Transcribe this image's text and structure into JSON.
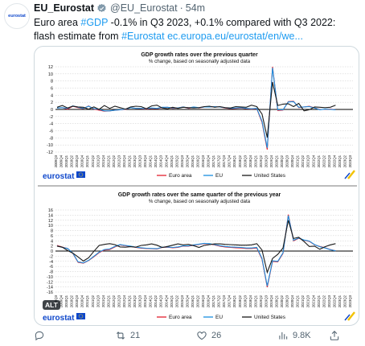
{
  "tweet": {
    "display_name": "EU_Eurostat",
    "handle": "@EU_Eurostat",
    "separator": "·",
    "time": "54m",
    "text_parts": {
      "p1": "Euro area ",
      "p2": "#GDP",
      "p3": " -0.1% in Q3 2023, +0.1% compared with Q3 2022: flash estimate from ",
      "p4": "#Eurostat",
      "p5": " ec.europa.eu/eurostat/en/we..."
    },
    "avatar_text": "eurostat"
  },
  "media": {
    "alt_badge": "ALT",
    "brand": "eurostat",
    "legend": {
      "euro": "Euro area",
      "eu": "EU",
      "us": "United States"
    },
    "colors": {
      "euro": "#e3202e",
      "eu": "#1a8fe0",
      "us": "#1a1a1a"
    }
  },
  "actions": {
    "replies": "",
    "reposts": "21",
    "likes": "26",
    "views": "9.8K"
  },
  "chart_data": [
    {
      "type": "line",
      "title": "GDP growth rates over the previous quarter",
      "subtitle": "% change, based on seasonally adjusted data",
      "ylim": [
        -12,
        12
      ],
      "yticks": [
        12,
        10,
        8,
        6,
        4,
        2,
        0,
        -2,
        -4,
        -6,
        -8,
        -10,
        -12
      ],
      "x_start": "2009Q3",
      "x_end": "2023Q3",
      "series": [
        {
          "name": "Euro area",
          "values": [
            0.4,
            0.5,
            0.1,
            0.9,
            0.5,
            0.2,
            1.0,
            0.1,
            -0.2,
            -0.5,
            -0.4,
            -0.2,
            -0.1,
            0.0,
            0.5,
            0.3,
            0.2,
            0.1,
            0.3,
            0.2,
            0.5,
            0.6,
            0.3,
            0.4,
            0.7,
            0.3,
            0.6,
            0.4,
            0.7,
            0.7,
            0.8,
            0.7,
            0.4,
            0.2,
            0.3,
            0.4,
            0.2,
            0.1,
            0.2,
            -3.6,
            -11.3,
            12.0,
            -0.3,
            -0.2,
            2.2,
            2.3,
            0.5,
            0.7,
            0.9,
            0.4,
            0.0,
            0.0,
            0.1,
            -0.1
          ]
        },
        {
          "name": "EU",
          "values": [
            0.4,
            0.5,
            0.3,
            1.0,
            0.6,
            0.3,
            0.9,
            0.2,
            0.0,
            -0.4,
            -0.4,
            -0.2,
            -0.1,
            0.1,
            0.5,
            0.3,
            0.3,
            0.2,
            0.4,
            0.3,
            0.6,
            0.6,
            0.4,
            0.4,
            0.7,
            0.4,
            0.7,
            0.5,
            0.7,
            0.7,
            0.8,
            0.7,
            0.5,
            0.3,
            0.4,
            0.5,
            0.3,
            0.2,
            0.3,
            -3.3,
            -10.8,
            11.7,
            -0.1,
            -0.1,
            2.1,
            2.2,
            0.6,
            0.7,
            0.8,
            0.4,
            -0.1,
            0.1,
            0.0,
            -0.1
          ]
        },
        {
          "name": "United States",
          "values": [
            0.6,
            1.1,
            0.4,
            0.9,
            0.7,
            0.6,
            0.1,
            0.7,
            0.0,
            1.1,
            0.3,
            0.9,
            0.5,
            0.1,
            0.7,
            0.9,
            0.8,
            0.2,
            1.0,
            1.2,
            0.4,
            0.2,
            0.6,
            0.3,
            0.6,
            0.5,
            0.4,
            0.5,
            0.8,
            0.9,
            0.6,
            0.8,
            0.5,
            0.4,
            0.8,
            0.7,
            0.6,
            1.2,
            0.8,
            -1.3,
            -7.9,
            7.7,
            1.1,
            1.5,
            1.6,
            0.8,
            1.7,
            -0.4,
            -0.1,
            0.7,
            0.6,
            0.5,
            0.6,
            1.2
          ]
        }
      ]
    },
    {
      "type": "line",
      "title": "GDP growth rates over the same quarter of the previous year",
      "subtitle": "% change, based on seasonally adjusted data",
      "ylim": [
        -16,
        16
      ],
      "yticks": [
        16,
        14,
        12,
        10,
        8,
        6,
        4,
        2,
        0,
        -2,
        -4,
        -6,
        -8,
        -10,
        -12,
        -14,
        -16
      ],
      "x_start": "2009Q3",
      "x_end": "2023Q3",
      "series": [
        {
          "name": "Euro area",
          "values": [
            2.2,
            1.5,
            1.0,
            -0.9,
            -4.4,
            -4.7,
            -3.7,
            -2.2,
            -0.6,
            0.4,
            0.6,
            1.6,
            2.4,
            2.1,
            1.8,
            1.4,
            1.1,
            1.0,
            0.9,
            0.8,
            1.4,
            1.5,
            1.3,
            1.4,
            1.9,
            1.9,
            2.3,
            2.6,
            2.9,
            2.8,
            2.4,
            1.9,
            1.6,
            1.4,
            1.3,
            1.2,
            1.0,
            1.0,
            1.2,
            -3.2,
            -14.1,
            -4.0,
            -4.2,
            -0.9,
            14.2,
            4.0,
            5.0,
            4.2,
            3.8,
            2.4,
            1.8,
            1.3,
            0.6,
            0.1
          ]
        },
        {
          "name": "EU",
          "values": [
            2.0,
            1.4,
            1.0,
            -0.8,
            -4.2,
            -4.6,
            -3.6,
            -2.0,
            -0.4,
            0.6,
            0.8,
            1.8,
            2.5,
            2.2,
            1.9,
            1.5,
            1.3,
            1.1,
            1.0,
            0.9,
            1.5,
            1.6,
            1.4,
            1.6,
            2.0,
            2.0,
            2.4,
            2.7,
            3.0,
            2.9,
            2.5,
            2.1,
            1.8,
            1.6,
            1.5,
            1.4,
            1.2,
            1.2,
            1.4,
            -2.9,
            -13.6,
            -3.8,
            -4.0,
            -0.7,
            13.8,
            4.2,
            5.1,
            4.3,
            3.9,
            2.5,
            1.7,
            1.2,
            0.5,
            0.1
          ]
        },
        {
          "name": "United States",
          "values": [
            1.9,
            1.5,
            0.2,
            -0.8,
            -2.3,
            -3.9,
            -2.6,
            -0.1,
            2.2,
            2.6,
            2.9,
            2.5,
            1.6,
            1.5,
            1.7,
            1.5,
            2.2,
            2.4,
            2.8,
            2.3,
            1.4,
            1.8,
            2.3,
            2.8,
            2.4,
            2.6,
            2.1,
            1.4,
            2.2,
            2.5,
            2.8,
            2.8,
            2.6,
            2.5,
            2.4,
            2.3,
            2.3,
            2.4,
            2.9,
            0.4,
            -8.3,
            -2.9,
            -1.3,
            1.2,
            12.0,
            4.9,
            5.4,
            3.7,
            1.8,
            1.9,
            0.7,
            1.7,
            2.4,
            2.9
          ]
        }
      ]
    }
  ]
}
